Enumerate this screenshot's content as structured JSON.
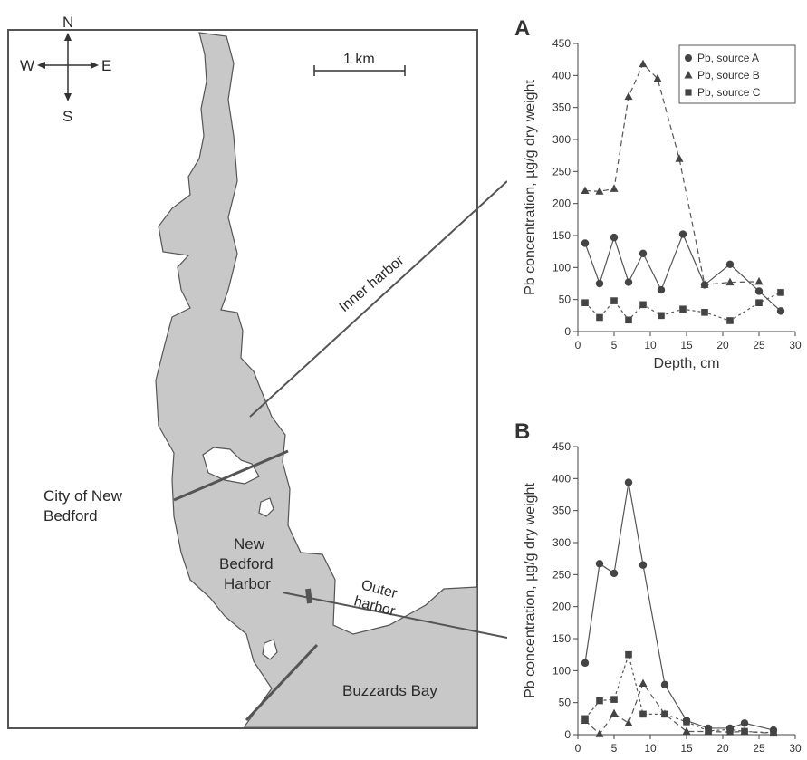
{
  "map": {
    "compass": {
      "n": "N",
      "s": "S",
      "e": "E",
      "w": "W"
    },
    "scale_label": "1 km",
    "labels": {
      "inner_harbor": "Inner harbor",
      "outer_harbor_1": "Outer",
      "outer_harbor_2": "harbor",
      "city_1": "City of New",
      "city_2": "Bedford",
      "harbor_1": "New",
      "harbor_2": "Bedford",
      "harbor_3": "Harbor",
      "bay": "Buzzards Bay"
    },
    "colors": {
      "water": "#c8c8c8",
      "line": "#555555"
    }
  },
  "chart_data": [
    {
      "type": "line",
      "panel": "A",
      "xlabel": "Depth, cm",
      "ylabel": "Pb concentration, µg/g dry weight",
      "xlim": [
        0,
        30
      ],
      "ylim": [
        0,
        450
      ],
      "xticks": [
        0,
        5,
        10,
        15,
        20,
        25,
        30
      ],
      "yticks": [
        0,
        50,
        100,
        150,
        200,
        250,
        300,
        350,
        400,
        450
      ],
      "legend_position": "top-right",
      "series": [
        {
          "name": "Pb, source A",
          "marker": "circle",
          "dash": "solid",
          "x": [
            1,
            3,
            5,
            7,
            9,
            11.5,
            14.5,
            17.5,
            21,
            25,
            28
          ],
          "y": [
            138,
            75,
            147,
            77,
            122,
            65,
            152,
            73,
            105,
            63,
            32
          ]
        },
        {
          "name": "Pb, source B",
          "marker": "triangle",
          "dash": "long",
          "x": [
            1,
            3,
            5,
            7,
            9,
            11,
            14,
            17.5,
            21,
            25
          ],
          "y": [
            220,
            219,
            223,
            367,
            418,
            395,
            270,
            73,
            77,
            78
          ]
        },
        {
          "name": "Pb, source C",
          "marker": "square",
          "dash": "short",
          "x": [
            1,
            3,
            5,
            7,
            9,
            11.5,
            14.5,
            17.5,
            21,
            25,
            28
          ],
          "y": [
            45,
            22,
            48,
            18,
            42,
            25,
            35,
            30,
            17,
            45,
            61
          ]
        }
      ]
    },
    {
      "type": "line",
      "panel": "B",
      "xlabel": "Depth, cm",
      "ylabel": "Pb concentration, µg/g dry weight",
      "xlim": [
        0,
        30
      ],
      "ylim": [
        0,
        450
      ],
      "xticks": [
        0,
        5,
        10,
        15,
        20,
        25,
        30
      ],
      "yticks": [
        0,
        50,
        100,
        150,
        200,
        250,
        300,
        350,
        400,
        450
      ],
      "series": [
        {
          "name": "Pb, source A",
          "marker": "circle",
          "dash": "solid",
          "x": [
            1,
            3,
            5,
            7,
            9,
            12,
            15,
            18,
            21,
            23,
            27
          ],
          "y": [
            112,
            267,
            252,
            394,
            265,
            78,
            22,
            10,
            10,
            18,
            7
          ]
        },
        {
          "name": "Pb, source B",
          "marker": "triangle",
          "dash": "long",
          "x": [
            1,
            3,
            5,
            7,
            9,
            12,
            15,
            18,
            21,
            23,
            27
          ],
          "y": [
            22,
            1,
            33,
            18,
            80,
            32,
            5,
            5,
            4,
            5,
            2
          ]
        },
        {
          "name": "Pb, source C",
          "marker": "square",
          "dash": "short",
          "x": [
            1,
            3,
            5,
            7,
            9,
            12,
            15,
            18,
            21,
            23,
            27
          ],
          "y": [
            25,
            53,
            55,
            125,
            32,
            32,
            20,
            6,
            8,
            5,
            3
          ]
        }
      ]
    }
  ]
}
